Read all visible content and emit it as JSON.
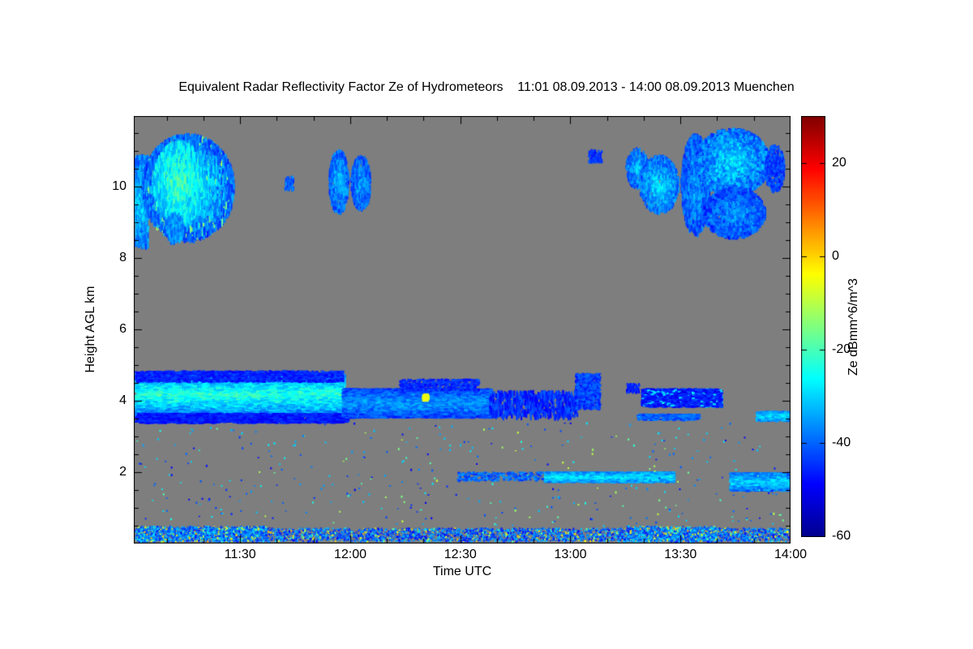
{
  "chart_data": {
    "type": "heatmap",
    "title": "Equivalent Radar Reflectivity Factor Ze of Hydrometeors    11:01 08.09.2013 - 14:00 08.09.2013 Muenchen",
    "xlabel": "Time UTC",
    "ylabel": "Height AGL km",
    "plot_background": "#7E7E7E",
    "figure_background": "#FFFFFF",
    "x_range_hours": [
      11.0167,
      14.0
    ],
    "y_range_km": [
      0,
      11.97
    ],
    "x_ticks": [
      {
        "hour": 11.5,
        "label": "11:30"
      },
      {
        "hour": 12.0,
        "label": "12:00"
      },
      {
        "hour": 12.5,
        "label": "12:30"
      },
      {
        "hour": 13.0,
        "label": "13:00"
      },
      {
        "hour": 13.5,
        "label": "13:30"
      },
      {
        "hour": 14.0,
        "label": "14:00"
      }
    ],
    "y_ticks": [
      {
        "km": 2,
        "label": "2"
      },
      {
        "km": 4,
        "label": "4"
      },
      {
        "km": 6,
        "label": "6"
      },
      {
        "km": 8,
        "label": "8"
      },
      {
        "km": 10,
        "label": "10"
      }
    ],
    "minor_tick_intervals": {
      "x_minutes": 10,
      "y_km": 0.5
    },
    "colorbar": {
      "label": "Ze dBmm^6/m^3",
      "min": -60,
      "max": 30,
      "units": "dBmm^6/m^3",
      "ticks": [
        {
          "value": 20,
          "label": "20"
        },
        {
          "value": 0,
          "label": "0"
        },
        {
          "value": -20,
          "label": "-20"
        },
        {
          "value": -40,
          "label": "-40"
        },
        {
          "value": -60,
          "label": "-60"
        }
      ],
      "colormap_stops": [
        {
          "t": 0.0,
          "color": "#00008F"
        },
        {
          "t": 0.125,
          "color": "#0000FF"
        },
        {
          "t": 0.375,
          "color": "#00FFFF"
        },
        {
          "t": 0.625,
          "color": "#FFFF00"
        },
        {
          "t": 0.875,
          "color": "#FF0000"
        },
        {
          "t": 1.0,
          "color": "#800000"
        }
      ]
    },
    "cloud_regions": [
      {
        "name": "cirrus-left-edge",
        "t": [
          11.02,
          11.08
        ],
        "h": [
          8.4,
          10.9
        ],
        "v": -38,
        "spread": 6,
        "density": 0.5,
        "sw": 2,
        "sh": 6,
        "core": 8
      },
      {
        "name": "cirrus-main",
        "t": [
          11.05,
          11.47
        ],
        "h": [
          8.6,
          11.5
        ],
        "v": -40,
        "spread": 7,
        "density": 0.6,
        "sw": 2,
        "sh": 7,
        "shape": "blob",
        "core": 16,
        "outlier": [
          0.06,
          -18,
          -10
        ]
      },
      {
        "name": "cirrus-core",
        "t": [
          11.1,
          11.34
        ],
        "h": [
          9.1,
          11.3
        ],
        "v": -30,
        "spread": 7,
        "density": 0.35,
        "sw": 2,
        "sh": 8,
        "shape": "blob",
        "core": 10
      },
      {
        "name": "cirrus-fallstreak",
        "t": [
          11.16,
          11.24
        ],
        "h": [
          8.5,
          9.3
        ],
        "v": -36,
        "spread": 5,
        "density": 0.4,
        "sw": 2,
        "sh": 6,
        "shape": "blob"
      },
      {
        "name": "speck-1143",
        "t": [
          11.7,
          11.74
        ],
        "h": [
          9.9,
          10.3
        ],
        "v": -40,
        "spread": 5,
        "density": 0.5,
        "sw": 2,
        "sh": 3
      },
      {
        "name": "cell-1156",
        "t": [
          11.9,
          11.99
        ],
        "h": [
          9.3,
          11.05
        ],
        "v": -40,
        "spread": 6,
        "density": 0.5,
        "sw": 2,
        "sh": 5,
        "shape": "blob",
        "core": 8
      },
      {
        "name": "cell-1202",
        "t": [
          12.0,
          12.09
        ],
        "h": [
          9.4,
          10.9
        ],
        "v": -41,
        "spread": 6,
        "density": 0.45,
        "sw": 2,
        "sh": 5,
        "shape": "blob",
        "core": 6
      },
      {
        "name": "speck-1306",
        "t": [
          13.08,
          13.14
        ],
        "h": [
          10.7,
          11.05
        ],
        "v": -44,
        "spread": 4,
        "density": 0.5,
        "sw": 2,
        "sh": 3
      },
      {
        "name": "cloud-ur-1",
        "t": [
          13.25,
          13.35
        ],
        "h": [
          10.0,
          11.1
        ],
        "v": -40,
        "spread": 6,
        "density": 0.5,
        "sw": 2,
        "sh": 4,
        "shape": "blob",
        "core": 8
      },
      {
        "name": "cloud-ur-2",
        "t": [
          13.31,
          13.49
        ],
        "h": [
          9.3,
          10.9
        ],
        "v": -39,
        "spread": 6,
        "density": 0.55,
        "sw": 2,
        "sh": 4,
        "shape": "blob",
        "core": 10
      },
      {
        "name": "cloud-ur-3",
        "t": [
          13.5,
          13.63
        ],
        "h": [
          8.7,
          11.5
        ],
        "v": -41,
        "spread": 6,
        "density": 0.5,
        "sw": 2,
        "sh": 5,
        "shape": "blob",
        "core": 6
      },
      {
        "name": "cloud-ur-4",
        "t": [
          13.56,
          13.9
        ],
        "h": [
          9.8,
          11.65
        ],
        "v": -39,
        "spread": 7,
        "density": 0.55,
        "sw": 3,
        "sh": 4,
        "shape": "blob",
        "core": 10
      },
      {
        "name": "cloud-ur-5",
        "t": [
          13.6,
          13.88
        ],
        "h": [
          8.6,
          10.0
        ],
        "v": -42,
        "spread": 6,
        "density": 0.45,
        "sw": 3,
        "sh": 4,
        "shape": "blob",
        "core": 6
      },
      {
        "name": "cloud-ur-6",
        "t": [
          13.88,
          13.97
        ],
        "h": [
          9.9,
          11.2
        ],
        "v": -43,
        "spread": 5,
        "density": 0.4,
        "sw": 2,
        "sh": 4,
        "shape": "blob"
      },
      {
        "name": "midlayer-left",
        "t": [
          11.02,
          11.96
        ],
        "h": [
          3.6,
          4.78
        ],
        "v": -38,
        "spread": 6,
        "density": 1.1,
        "sw": 6,
        "sh": 2,
        "core": 15
      },
      {
        "name": "midlayer-left-top-edge",
        "t": [
          11.02,
          11.96
        ],
        "h": [
          4.55,
          4.85
        ],
        "v": -46,
        "spread": 4,
        "density": 0.5,
        "sw": 4,
        "sh": 2
      },
      {
        "name": "midlayer-left-bottom",
        "t": [
          11.02,
          11.98
        ],
        "h": [
          3.4,
          3.66
        ],
        "v": -47,
        "spread": 4,
        "density": 0.7,
        "sw": 5,
        "sh": 2
      },
      {
        "name": "midlayer-right",
        "t": [
          11.96,
          12.63
        ],
        "h": [
          3.55,
          4.35
        ],
        "v": -43,
        "spread": 5,
        "density": 1.1,
        "sw": 5,
        "sh": 2,
        "core": 8
      },
      {
        "name": "midlayer-right-top",
        "t": [
          12.22,
          12.58
        ],
        "h": [
          4.3,
          4.62
        ],
        "v": -45,
        "spread": 4,
        "density": 0.45,
        "sw": 3,
        "sh": 2
      },
      {
        "name": "orange-speck",
        "t": [
          12.325,
          12.35
        ],
        "h": [
          4.05,
          4.2
        ],
        "v": -6,
        "spread": 3,
        "density": 2.5,
        "sw": 3,
        "sh": 3
      },
      {
        "name": "midlayer-patchy",
        "t": [
          12.63,
          13.03
        ],
        "h": [
          3.6,
          4.3
        ],
        "v": -45,
        "spread": 5,
        "density": 0.22,
        "sw": 2,
        "sh": 6
      },
      {
        "name": "patch-1303",
        "t": [
          13.02,
          13.13
        ],
        "h": [
          3.8,
          4.78
        ],
        "v": -43,
        "spread": 5,
        "density": 0.45,
        "sw": 3,
        "sh": 3
      },
      {
        "name": "patch-1316",
        "t": [
          13.25,
          13.31
        ],
        "h": [
          4.25,
          4.5
        ],
        "v": -45,
        "spread": 4,
        "density": 0.4,
        "sw": 2,
        "sh": 3
      },
      {
        "name": "layer-1320",
        "t": [
          13.32,
          13.68
        ],
        "h": [
          3.85,
          4.35
        ],
        "v": -47,
        "spread": 5,
        "density": 0.9,
        "sw": 4,
        "sh": 2,
        "outlier": [
          0.1,
          -32,
          -24
        ]
      },
      {
        "name": "thinline-1320",
        "t": [
          13.3,
          13.58
        ],
        "h": [
          3.48,
          3.64
        ],
        "v": -40,
        "spread": 5,
        "density": 0.7,
        "sw": 4,
        "sh": 2
      },
      {
        "name": "patch-1352",
        "t": [
          13.84,
          14.0
        ],
        "h": [
          3.45,
          3.72
        ],
        "v": -36,
        "spread": 5,
        "density": 0.8,
        "sw": 4,
        "sh": 2,
        "core": 6
      },
      {
        "name": "lowlayer-sparse",
        "t": [
          12.48,
          12.88
        ],
        "h": [
          1.78,
          2.02
        ],
        "v": -40,
        "spread": 6,
        "density": 0.25,
        "sw": 3,
        "sh": 2
      },
      {
        "name": "lowlayer-main",
        "t": [
          12.88,
          13.46
        ],
        "h": [
          1.74,
          2.02
        ],
        "v": -36,
        "spread": 5,
        "density": 1.0,
        "sw": 5,
        "sh": 2,
        "core": 8
      },
      {
        "name": "lowlayer-right",
        "t": [
          13.72,
          14.0
        ],
        "h": [
          1.5,
          2.0
        ],
        "v": -38,
        "spread": 6,
        "density": 0.9,
        "sw": 5,
        "sh": 2,
        "core": 8
      },
      {
        "name": "surface-layer",
        "t": [
          11.02,
          14.0
        ],
        "h": [
          0.08,
          0.45
        ],
        "v": -40,
        "spread": 10,
        "density": 0.3,
        "sw": 2,
        "sh": 2,
        "outlier": [
          0.12,
          -22,
          4
        ]
      },
      {
        "name": "surface-dense-left",
        "t": [
          11.03,
          11.62
        ],
        "h": [
          0.08,
          0.5
        ],
        "v": -38,
        "spread": 10,
        "density": 0.4,
        "sw": 2,
        "sh": 2,
        "outlier": [
          0.15,
          -22,
          4
        ]
      },
      {
        "name": "surface-dense-right",
        "t": [
          13.25,
          13.66
        ],
        "h": [
          0.08,
          0.5
        ],
        "v": -38,
        "spread": 10,
        "density": 0.4,
        "sw": 2,
        "sh": 2,
        "outlier": [
          0.15,
          -22,
          4
        ]
      },
      {
        "name": "scatter-noise",
        "t": [
          11.02,
          14.0
        ],
        "h": [
          0.5,
          3.4
        ],
        "v": -38,
        "spread": 12,
        "density": 0.0035,
        "sw": 2,
        "sh": 2,
        "outlier": [
          0.2,
          -25,
          -8
        ]
      }
    ]
  }
}
